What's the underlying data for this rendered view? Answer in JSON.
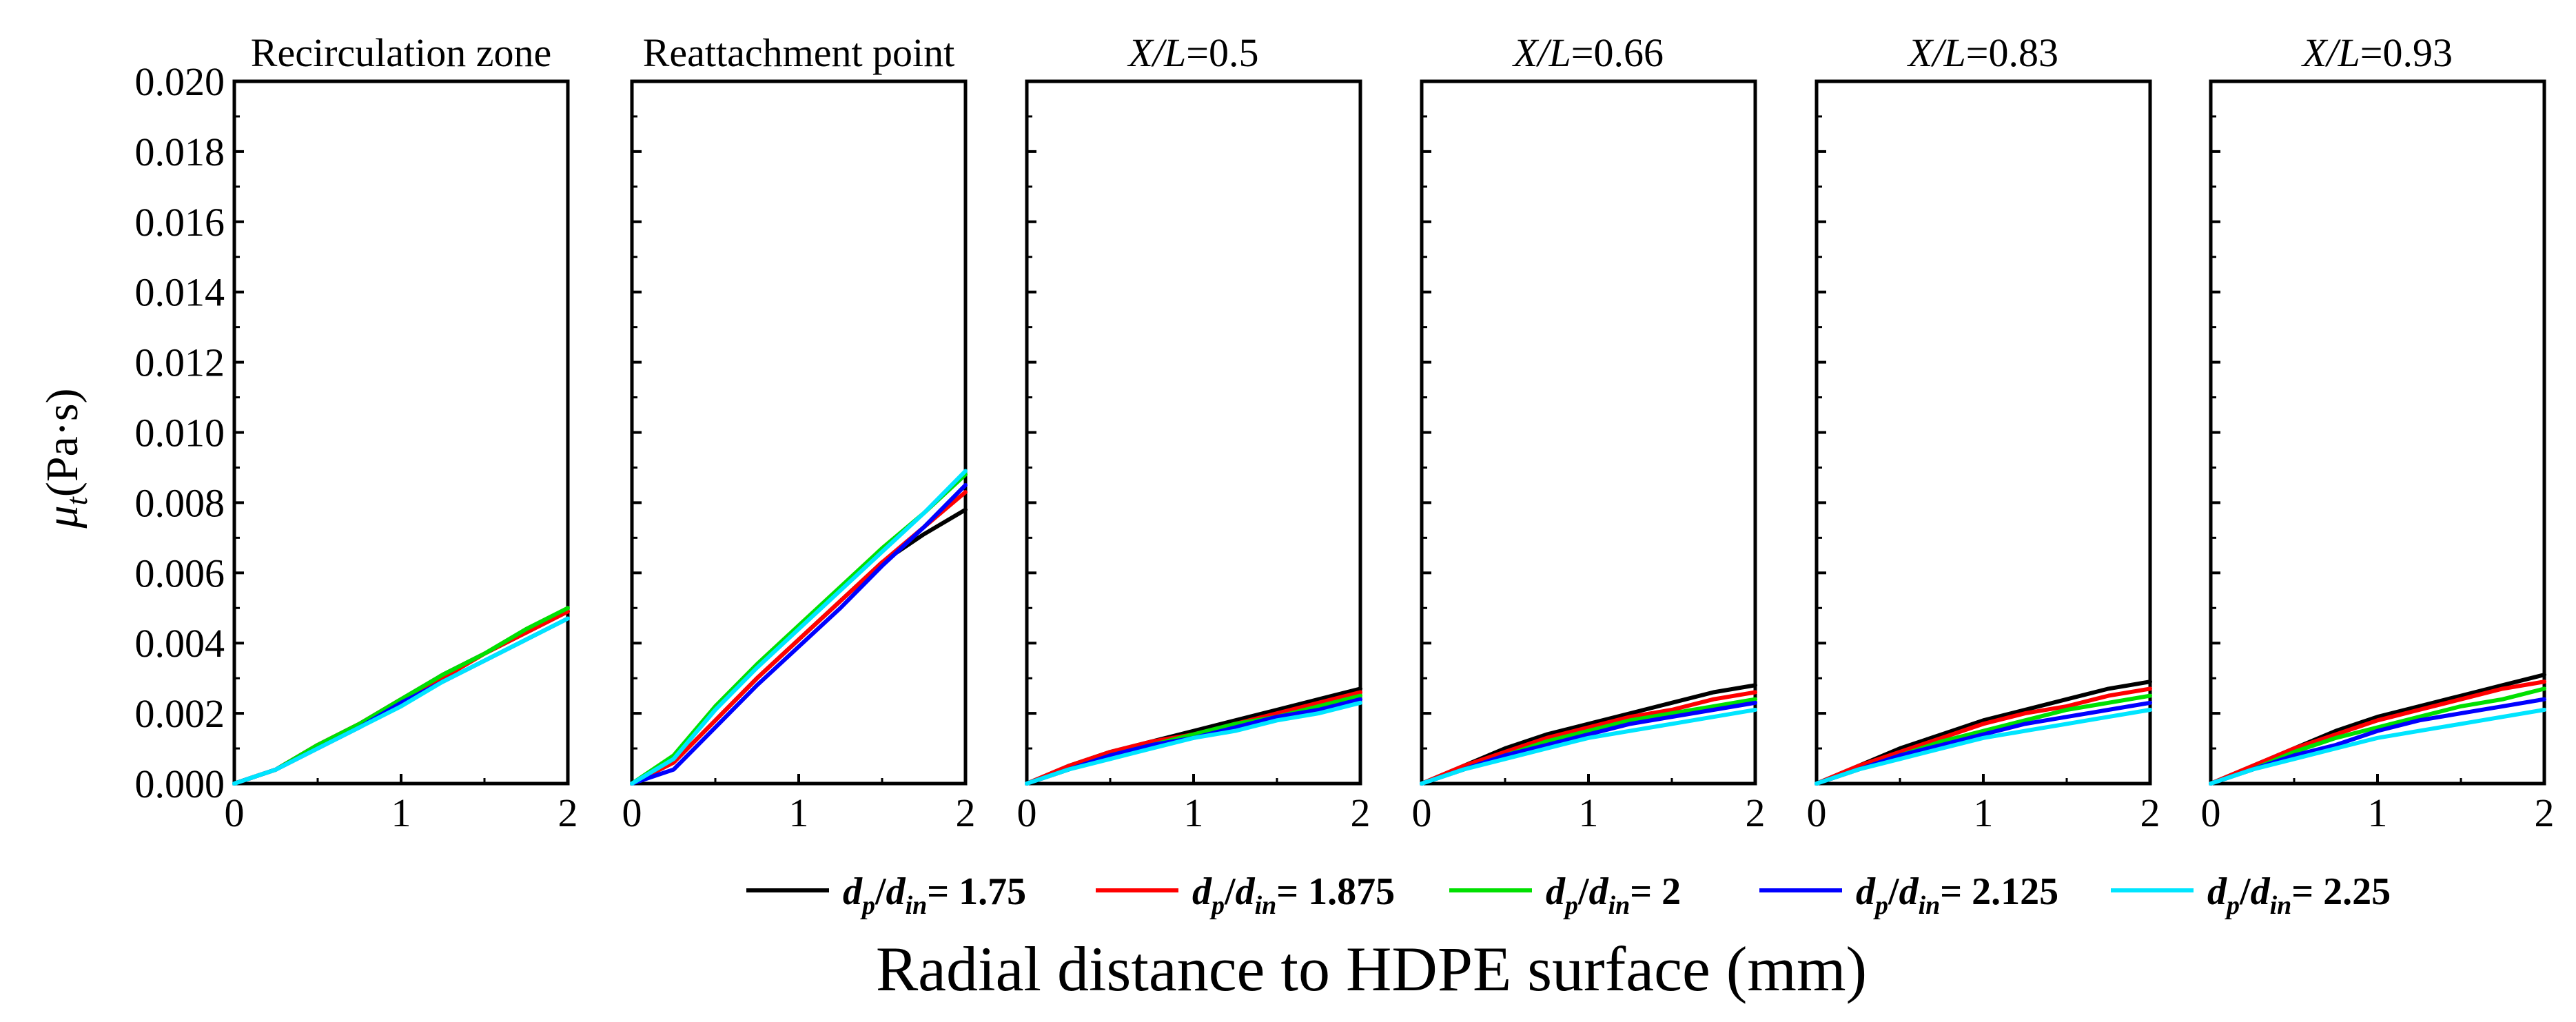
{
  "chart_data": {
    "type": "line",
    "ylabel": {
      "symbol": "μ",
      "sub": "t",
      "unit": "(Pa·s)"
    },
    "xlabel": "Radial distance to HDPE surface (mm)",
    "xlim": [
      0,
      2
    ],
    "ylim": [
      0,
      0.02
    ],
    "xticks": [
      "0",
      "1",
      "2"
    ],
    "yticks": [
      "0.000",
      "0.002",
      "0.004",
      "0.006",
      "0.008",
      "0.010",
      "0.012",
      "0.014",
      "0.016",
      "0.018",
      "0.020"
    ],
    "x": [
      0,
      0.25,
      0.5,
      0.75,
      1.0,
      1.25,
      1.5,
      1.75,
      2.0
    ],
    "legend": [
      {
        "num": "d",
        "num_sub": "p",
        "den": "d",
        "den_sub": "in",
        "value": "1.75",
        "color": "#000000"
      },
      {
        "num": "d",
        "num_sub": "p",
        "den": "d",
        "den_sub": "in",
        "value": "1.875",
        "color": "#ff0000"
      },
      {
        "num": "d",
        "num_sub": "p",
        "den": "d",
        "den_sub": "in",
        "value": "2",
        "color": "#00e000"
      },
      {
        "num": "d",
        "num_sub": "p",
        "den": "d",
        "den_sub": "in",
        "value": "2.125",
        "color": "#0000ff"
      },
      {
        "num": "d",
        "num_sub": "p",
        "den": "d",
        "den_sub": "in",
        "value": "2.25",
        "color": "#00e5ff"
      }
    ],
    "panels": [
      {
        "title": "Recirculation zone",
        "series": [
          {
            "name": "dp/din = 1.75",
            "values": [
              0,
              0.0004,
              0.0011,
              0.0017,
              0.0024,
              0.0031,
              0.0037,
              0.0043,
              0.0049
            ]
          },
          {
            "name": "dp/din = 1.875",
            "values": [
              0,
              0.0004,
              0.0011,
              0.0017,
              0.0024,
              0.003,
              0.0037,
              0.0043,
              0.0049
            ]
          },
          {
            "name": "dp/din = 2",
            "values": [
              0,
              0.0004,
              0.0011,
              0.0017,
              0.0024,
              0.0031,
              0.0037,
              0.0044,
              0.005
            ]
          },
          {
            "name": "dp/din = 2.125",
            "values": [
              0,
              0.0004,
              0.001,
              0.0016,
              0.0023,
              0.0029,
              0.0035,
              0.0041,
              0.0047
            ]
          },
          {
            "name": "dp/din = 2.25",
            "values": [
              0,
              0.0004,
              0.001,
              0.0016,
              0.0022,
              0.0029,
              0.0035,
              0.0041,
              0.0047
            ]
          }
        ]
      },
      {
        "title": "Reattachment point",
        "series": [
          {
            "name": "dp/din = 1.75",
            "values": [
              0,
              0.0006,
              0.0018,
              0.003,
              0.0041,
              0.0052,
              0.0063,
              0.0071,
              0.0078
            ]
          },
          {
            "name": "dp/din = 1.875",
            "values": [
              0,
              0.0006,
              0.0018,
              0.003,
              0.0041,
              0.0052,
              0.0063,
              0.0073,
              0.0083
            ]
          },
          {
            "name": "dp/din = 2",
            "values": [
              0,
              0.0008,
              0.0022,
              0.0034,
              0.0045,
              0.0056,
              0.0067,
              0.0077,
              0.0088
            ]
          },
          {
            "name": "dp/din = 2.125",
            "values": [
              0,
              0.0004,
              0.0016,
              0.0028,
              0.0039,
              0.005,
              0.0062,
              0.0073,
              0.0085
            ]
          },
          {
            "name": "dp/din = 2.25",
            "values": [
              0,
              0.0007,
              0.0021,
              0.0033,
              0.0044,
              0.0055,
              0.0066,
              0.0077,
              0.0089
            ]
          }
        ]
      },
      {
        "title": "X/L=0.5",
        "title_italic": "X/L",
        "title_rest": "=0.5",
        "series": [
          {
            "name": "dp/din = 1.75",
            "values": [
              0,
              0.0005,
              0.0009,
              0.0012,
              0.0015,
              0.0018,
              0.0021,
              0.0024,
              0.0027
            ]
          },
          {
            "name": "dp/din = 1.875",
            "values": [
              0,
              0.0005,
              0.0009,
              0.0012,
              0.0014,
              0.0017,
              0.002,
              0.0023,
              0.0026
            ]
          },
          {
            "name": "dp/din = 2",
            "values": [
              0,
              0.0004,
              0.0008,
              0.0011,
              0.0014,
              0.0017,
              0.0019,
              0.0022,
              0.0025
            ]
          },
          {
            "name": "dp/din = 2.125",
            "values": [
              0,
              0.0004,
              0.0008,
              0.0011,
              0.0013,
              0.0016,
              0.0019,
              0.0021,
              0.0024
            ]
          },
          {
            "name": "dp/din = 2.25",
            "values": [
              0,
              0.0004,
              0.0007,
              0.001,
              0.0013,
              0.0015,
              0.0018,
              0.002,
              0.0023
            ]
          }
        ]
      },
      {
        "title": "X/L=0.66",
        "title_italic": "X/L",
        "title_rest": "=0.66",
        "series": [
          {
            "name": "dp/din = 1.75",
            "values": [
              0,
              0.0005,
              0.001,
              0.0014,
              0.0017,
              0.002,
              0.0023,
              0.0026,
              0.0028
            ]
          },
          {
            "name": "dp/din = 1.875",
            "values": [
              0,
              0.0005,
              0.0009,
              0.0013,
              0.0016,
              0.0019,
              0.0021,
              0.0024,
              0.0026
            ]
          },
          {
            "name": "dp/din = 2",
            "values": [
              0,
              0.0004,
              0.0008,
              0.0012,
              0.0015,
              0.0018,
              0.002,
              0.0022,
              0.0024
            ]
          },
          {
            "name": "dp/din = 2.125",
            "values": [
              0,
              0.0004,
              0.0008,
              0.0011,
              0.0014,
              0.0017,
              0.0019,
              0.0021,
              0.0023
            ]
          },
          {
            "name": "dp/din = 2.25",
            "values": [
              0,
              0.0004,
              0.0007,
              0.001,
              0.0013,
              0.0015,
              0.0017,
              0.0019,
              0.0021
            ]
          }
        ]
      },
      {
        "title": "X/L=0.83",
        "title_italic": "X/L",
        "title_rest": "=0.83",
        "series": [
          {
            "name": "dp/din = 1.75",
            "values": [
              0,
              0.0005,
              0.001,
              0.0014,
              0.0018,
              0.0021,
              0.0024,
              0.0027,
              0.0029
            ]
          },
          {
            "name": "dp/din = 1.875",
            "values": [
              0,
              0.0005,
              0.0009,
              0.0013,
              0.0017,
              0.002,
              0.0022,
              0.0025,
              0.0027
            ]
          },
          {
            "name": "dp/din = 2",
            "values": [
              0,
              0.0004,
              0.0008,
              0.0012,
              0.0015,
              0.0018,
              0.0021,
              0.0023,
              0.0025
            ]
          },
          {
            "name": "dp/din = 2.125",
            "values": [
              0,
              0.0004,
              0.0008,
              0.0011,
              0.0014,
              0.0017,
              0.0019,
              0.0021,
              0.0023
            ]
          },
          {
            "name": "dp/din = 2.25",
            "values": [
              0,
              0.0004,
              0.0007,
              0.001,
              0.0013,
              0.0015,
              0.0017,
              0.0019,
              0.0021
            ]
          }
        ]
      },
      {
        "title": "X/L=0.93",
        "title_italic": "X/L",
        "title_rest": "=0.93",
        "series": [
          {
            "name": "dp/din = 1.75",
            "values": [
              0,
              0.0005,
              0.001,
              0.0015,
              0.0019,
              0.0022,
              0.0025,
              0.0028,
              0.0031
            ]
          },
          {
            "name": "dp/din = 1.875",
            "values": [
              0,
              0.0005,
              0.001,
              0.0014,
              0.0018,
              0.0021,
              0.0024,
              0.0027,
              0.0029
            ]
          },
          {
            "name": "dp/din = 2",
            "values": [
              0,
              0.0004,
              0.0009,
              0.0013,
              0.0016,
              0.0019,
              0.0022,
              0.0024,
              0.0027
            ]
          },
          {
            "name": "dp/din = 2.125",
            "values": [
              0,
              0.0004,
              0.0008,
              0.0011,
              0.0015,
              0.0018,
              0.002,
              0.0022,
              0.0024
            ]
          },
          {
            "name": "dp/din = 2.25",
            "values": [
              0,
              0.0004,
              0.0007,
              0.001,
              0.0013,
              0.0015,
              0.0017,
              0.0019,
              0.0021
            ]
          }
        ]
      }
    ]
  }
}
